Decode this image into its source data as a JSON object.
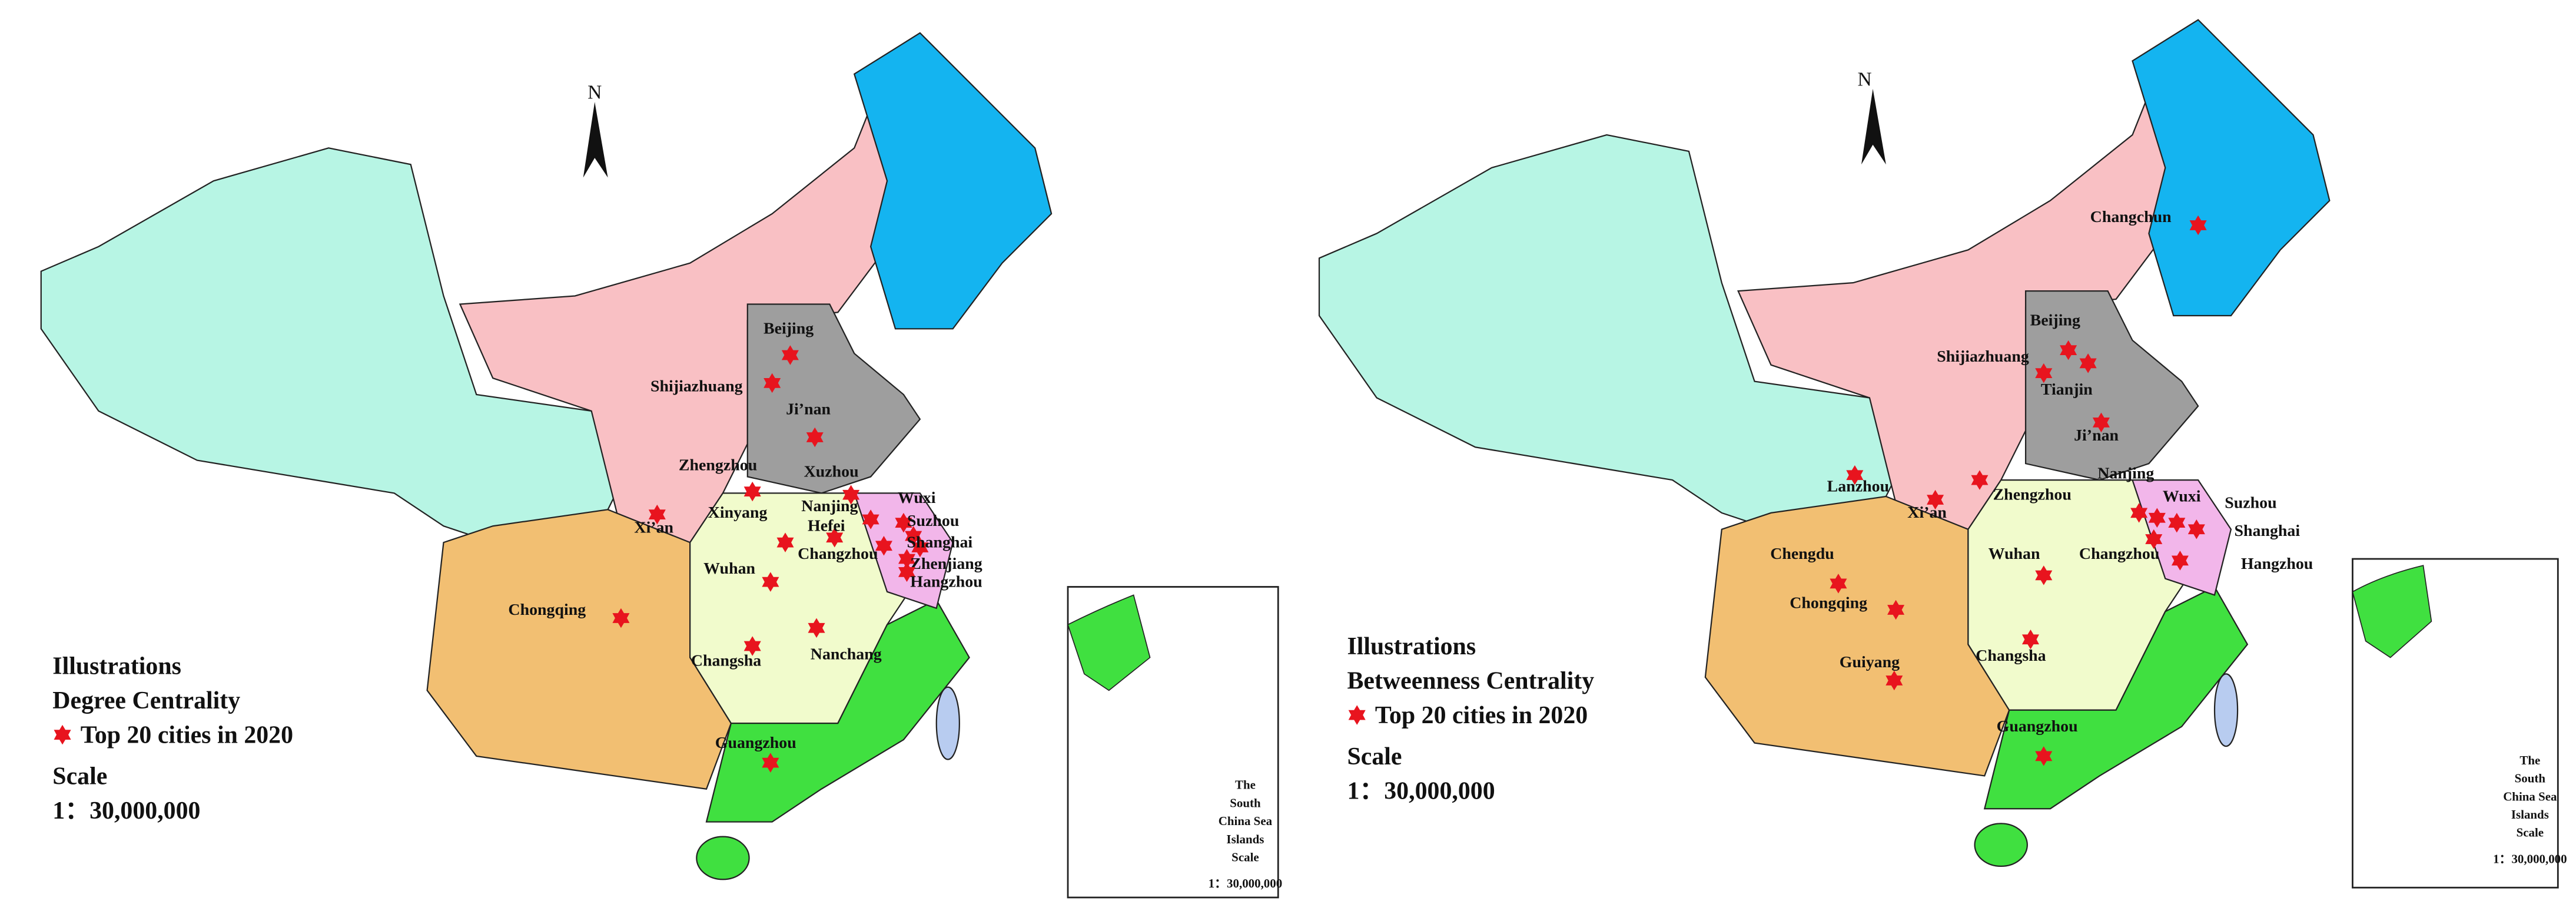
{
  "maps": [
    {
      "north": "N",
      "legend": {
        "title": "Illustrations",
        "subtitle": "Degree Centrality",
        "item": "Top 20 cities in 2020",
        "scale_title": "Scale",
        "scale": "1：30,000,000"
      },
      "cities": [
        "Beijing",
        "Shijiazhuang",
        "Ji’nan",
        "Zhengzhou",
        "Xuzhou",
        "Xi’an",
        "Xinyang",
        "Nanjing",
        "Hefei",
        "Wuxi",
        "Suzhou",
        "Shanghai",
        "Zhenjiang",
        "Hangzhou",
        "Changzhou",
        "Wuhan",
        "Chongqing",
        "Changsha",
        "Nanchang",
        "Guangzhou"
      ],
      "inset": {
        "lines": [
          "The",
          "South",
          "China Sea",
          "Islands",
          "Scale"
        ],
        "scale": "1：30,000,000"
      }
    },
    {
      "north": "N",
      "legend": {
        "title": "Illustrations",
        "subtitle": "Betweenness Centrality",
        "item": "Top 20 cities in 2020",
        "scale_title": "Scale",
        "scale": "1：30,000,000"
      },
      "cities": [
        "Changchun",
        "Beijing",
        "Tianjin",
        "Shijiazhuang",
        "Ji’nan",
        "Lanzhou",
        "Xi’an",
        "Zhengzhou",
        "Nanjing",
        "Wuxi",
        "Suzhou",
        "Shanghai",
        "Hangzhou",
        "Changzhou",
        "Wuhan",
        "Chengdu",
        "Chongqing",
        "Changsha",
        "Guiyang",
        "Guangzhou"
      ],
      "inset": {
        "lines": [
          "The",
          "South",
          "China Sea",
          "Islands",
          "Scale"
        ],
        "scale": "1：30,000,000"
      }
    }
  ]
}
